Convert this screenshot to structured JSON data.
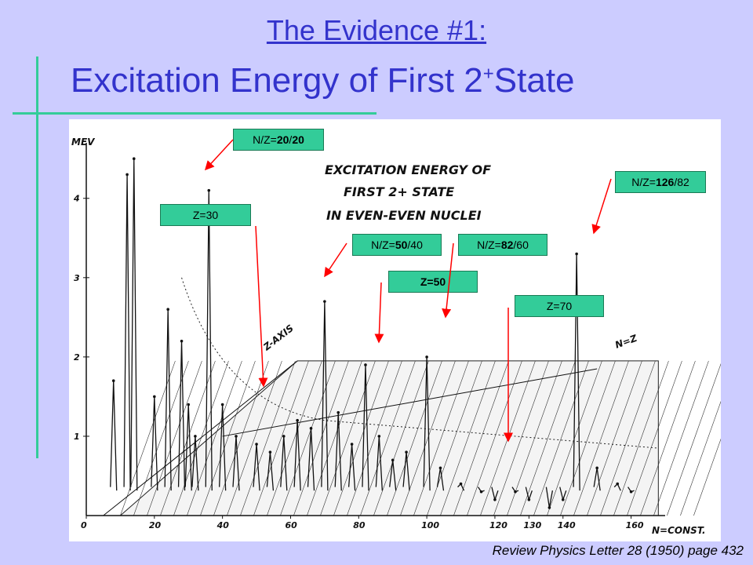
{
  "slide": {
    "title_line1": "The Evidence #1:",
    "title_line2_pre": "Excitation Energy of First 2",
    "title_line2_sup": "+",
    "title_line2_post": "State",
    "citation": "Review Physics Letter 28 (1950) page 432"
  },
  "callouts": {
    "c1_pre": "N/Z=",
    "c1_bold": "20",
    "c1_post": "/",
    "c1_bold2": "20",
    "c2": "Z=30",
    "c3_pre": "N/Z=",
    "c3_bold": "50",
    "c3_post": "/40",
    "c4_pre": "N/Z=",
    "c4_bold": "82",
    "c4_post": "/60",
    "c5": "Z=50",
    "c6": "Z=70",
    "c7_pre": "N/Z=",
    "c7_bold": "126",
    "c7_post": "/82"
  },
  "chart_data": {
    "type": "line",
    "title": "EXCITATION ENERGY OF FIRST 2+ STATE IN EVEN-EVEN NUCLEI",
    "ylabel": "MEV",
    "xlabel": "N=CONST.",
    "y_ticks": [
      "1",
      "2",
      "3",
      "4"
    ],
    "x_ticks": [
      "0",
      "20",
      "40",
      "60",
      "80",
      "100",
      "120",
      "130",
      "140",
      "160"
    ],
    "ylim": [
      0,
      4.7
    ],
    "xlim": [
      0,
      170
    ],
    "axis_labels_inside": [
      "Z-AXIS",
      "N=Z"
    ],
    "x": [
      8,
      12,
      14,
      20,
      24,
      28,
      30,
      32,
      36,
      40,
      44,
      50,
      54,
      58,
      62,
      66,
      70,
      74,
      78,
      82,
      86,
      90,
      94,
      100,
      104,
      110,
      116,
      120,
      126,
      130,
      136,
      140,
      144,
      150,
      156,
      160
    ],
    "y": [
      1.7,
      4.3,
      4.5,
      1.5,
      2.6,
      2.2,
      1.4,
      1.0,
      4.1,
      1.4,
      1.0,
      0.9,
      0.8,
      1.0,
      1.2,
      1.1,
      2.7,
      1.3,
      0.9,
      1.9,
      1.0,
      0.7,
      0.8,
      2.0,
      0.6,
      0.4,
      0.3,
      0.2,
      0.3,
      0.2,
      0.1,
      0.2,
      3.3,
      0.6,
      0.4,
      0.3
    ],
    "grid": false
  },
  "colors": {
    "background": "#ccccff",
    "title": "#3333cc",
    "callout": "#33cc99",
    "arrow": "#ff0000"
  }
}
